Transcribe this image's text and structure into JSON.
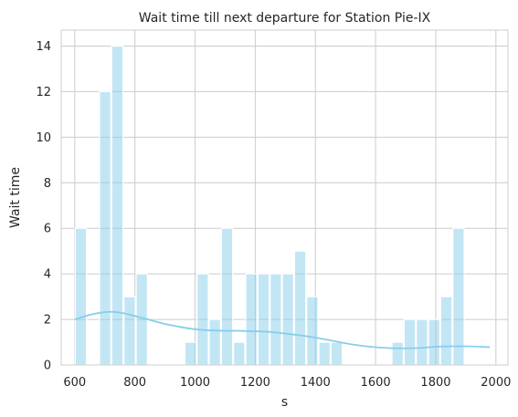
{
  "chart_data": {
    "type": "bar",
    "title": "Wait time till next departure for Station Pie-IX",
    "xlabel": "s",
    "ylabel": "Wait time",
    "xlim": [
      555,
      2040
    ],
    "ylim": [
      0,
      14.7
    ],
    "xticks": [
      600,
      800,
      1000,
      1200,
      1400,
      1600,
      1800,
      2000
    ],
    "yticks": [
      0,
      2,
      4,
      6,
      8,
      10,
      12,
      14
    ],
    "grid": true,
    "bar_color": "#87ceeb",
    "bar_alpha": 0.5,
    "kde_color": "#87ceeb",
    "bin_width": 40.5,
    "bin_start": 600,
    "bin_count": 34,
    "bins": [
      {
        "x": 600,
        "count": 6
      },
      {
        "x": 640.5,
        "count": 0
      },
      {
        "x": 681,
        "count": 12
      },
      {
        "x": 721.5,
        "count": 14
      },
      {
        "x": 762,
        "count": 3
      },
      {
        "x": 802.5,
        "count": 4
      },
      {
        "x": 843,
        "count": 0
      },
      {
        "x": 883.5,
        "count": 0
      },
      {
        "x": 924,
        "count": 0
      },
      {
        "x": 964.5,
        "count": 1
      },
      {
        "x": 1005,
        "count": 4
      },
      {
        "x": 1045.5,
        "count": 2
      },
      {
        "x": 1086,
        "count": 6
      },
      {
        "x": 1126.5,
        "count": 1
      },
      {
        "x": 1167,
        "count": 4
      },
      {
        "x": 1207.5,
        "count": 4
      },
      {
        "x": 1248,
        "count": 4
      },
      {
        "x": 1288.5,
        "count": 4
      },
      {
        "x": 1329,
        "count": 5
      },
      {
        "x": 1369.5,
        "count": 3
      },
      {
        "x": 1410,
        "count": 1
      },
      {
        "x": 1450.5,
        "count": 1
      },
      {
        "x": 1491,
        "count": 0
      },
      {
        "x": 1531.5,
        "count": 0
      },
      {
        "x": 1572,
        "count": 0
      },
      {
        "x": 1612.5,
        "count": 0
      },
      {
        "x": 1653,
        "count": 1
      },
      {
        "x": 1693.5,
        "count": 2
      },
      {
        "x": 1734,
        "count": 2
      },
      {
        "x": 1774.5,
        "count": 2
      },
      {
        "x": 1815,
        "count": 3
      },
      {
        "x": 1855.5,
        "count": 6
      },
      {
        "x": 1896,
        "count": 0
      },
      {
        "x": 1936.5,
        "count": 0
      }
    ],
    "kde": {
      "x": [
        600,
        650,
        700,
        730,
        760,
        800,
        850,
        900,
        950,
        1000,
        1050,
        1100,
        1150,
        1200,
        1250,
        1300,
        1350,
        1400,
        1450,
        1500,
        1550,
        1600,
        1650,
        1700,
        1750,
        1800,
        1850,
        1900,
        1950,
        1980
      ],
      "y": [
        2.0,
        2.2,
        2.32,
        2.33,
        2.28,
        2.15,
        1.98,
        1.8,
        1.67,
        1.57,
        1.52,
        1.5,
        1.5,
        1.48,
        1.45,
        1.38,
        1.3,
        1.2,
        1.08,
        0.95,
        0.85,
        0.78,
        0.74,
        0.73,
        0.75,
        0.8,
        0.82,
        0.82,
        0.8,
        0.78
      ]
    }
  }
}
